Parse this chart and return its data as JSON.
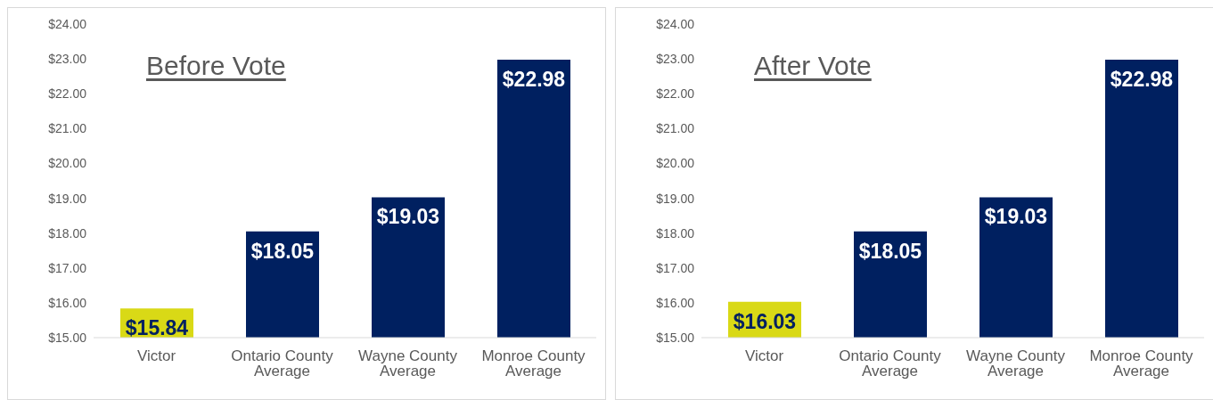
{
  "chart_data": [
    {
      "type": "bar",
      "title": "Before Vote",
      "categories": [
        "Victor",
        "Ontario County Average",
        "Wayne County Average",
        "Monroe County Average"
      ],
      "values": [
        15.84,
        18.05,
        19.03,
        22.98
      ],
      "colors": [
        "#d9d916",
        "#002060",
        "#002060",
        "#002060"
      ],
      "value_labels": [
        "$15.84",
        "$18.05",
        "$19.03",
        "$22.98"
      ],
      "ylim": [
        15,
        24
      ],
      "yticks": [
        {
          "value": 15,
          "label": "$15.00"
        },
        {
          "value": 16,
          "label": "$16.00"
        },
        {
          "value": 17,
          "label": "$17.00"
        },
        {
          "value": 18,
          "label": "$18.00"
        },
        {
          "value": 19,
          "label": "$19.00"
        },
        {
          "value": 20,
          "label": "$20.00"
        },
        {
          "value": 21,
          "label": "$21.00"
        },
        {
          "value": 22,
          "label": "$22.00"
        },
        {
          "value": 23,
          "label": "$23.00"
        },
        {
          "value": 24,
          "label": "$24.00"
        }
      ],
      "grid": false,
      "legend": false
    },
    {
      "type": "bar",
      "title": "After Vote",
      "categories": [
        "Victor",
        "Ontario County Average",
        "Wayne County Average",
        "Monroe County Average"
      ],
      "values": [
        16.03,
        18.05,
        19.03,
        22.98
      ],
      "colors": [
        "#d9d916",
        "#002060",
        "#002060",
        "#002060"
      ],
      "value_labels": [
        "$16.03",
        "$18.05",
        "$19.03",
        "$22.98"
      ],
      "ylim": [
        15,
        24
      ],
      "yticks": [
        {
          "value": 15,
          "label": "$15.00"
        },
        {
          "value": 16,
          "label": "$16.00"
        },
        {
          "value": 17,
          "label": "$17.00"
        },
        {
          "value": 18,
          "label": "$18.00"
        },
        {
          "value": 19,
          "label": "$19.00"
        },
        {
          "value": 20,
          "label": "$20.00"
        },
        {
          "value": 21,
          "label": "$21.00"
        },
        {
          "value": 22,
          "label": "$22.00"
        },
        {
          "value": 23,
          "label": "$23.00"
        },
        {
          "value": 24,
          "label": "$24.00"
        }
      ],
      "grid": false,
      "legend": false
    }
  ]
}
